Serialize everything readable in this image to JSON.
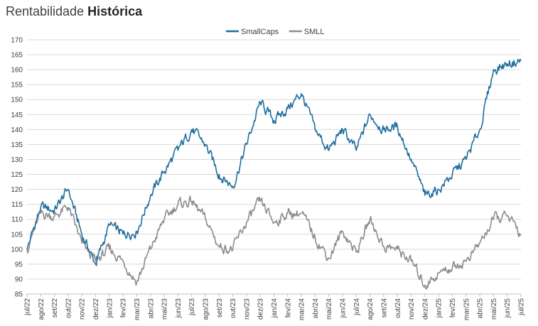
{
  "header": {
    "title_regular": "Rentabilidade",
    "title_bold": "Histórica"
  },
  "chart_data": {
    "type": "line",
    "title": "Rentabilidade Histórica",
    "xlabel": "",
    "ylabel": "",
    "ylim": [
      85,
      170
    ],
    "y_ticks": [
      85,
      90,
      95,
      100,
      105,
      110,
      115,
      120,
      125,
      130,
      135,
      140,
      145,
      150,
      155,
      160,
      165,
      170
    ],
    "grid": "horizontal",
    "legend_position": "top-center",
    "categories": [
      "jul/22",
      "ago/22",
      "set/22",
      "out/22",
      "nov/22",
      "dez/22",
      "jan/23",
      "fev/23",
      "mar/23",
      "abr/23",
      "mai/23",
      "jun/23",
      "jul/23",
      "ago/23",
      "set/23",
      "out/23",
      "nov/23",
      "dez/23",
      "jan/24",
      "fev/24",
      "mar/24",
      "abr/24",
      "mai/24",
      "jun/24",
      "jul/24",
      "ago/24",
      "set/24",
      "out/24",
      "nov/24",
      "dez/24",
      "jan/25",
      "fev/25",
      "mar/25",
      "abr/25",
      "mai/25",
      "jun/25",
      "jul/25"
    ],
    "series": [
      {
        "name": "SmallCaps",
        "color": "#1f6e9c",
        "values": [
          100,
          114,
          113,
          120,
          105,
          95,
          108,
          105,
          106,
          118,
          126,
          133,
          140,
          135,
          125,
          121,
          135,
          149,
          143,
          147,
          152,
          140,
          133,
          140,
          133,
          145,
          140,
          141,
          130,
          118,
          120,
          125,
          130,
          140,
          160,
          162,
          163
        ]
      },
      {
        "name": "SMLL",
        "color": "#8c8c8c",
        "values": [
          100,
          112,
          111,
          114,
          102,
          96,
          100,
          96,
          89,
          100,
          110,
          115,
          116,
          110,
          101,
          100,
          109,
          116,
          109,
          112,
          112,
          104,
          97,
          106,
          99,
          110,
          101,
          100,
          96,
          88,
          92,
          94,
          96,
          102,
          110,
          111,
          105
        ]
      }
    ]
  }
}
